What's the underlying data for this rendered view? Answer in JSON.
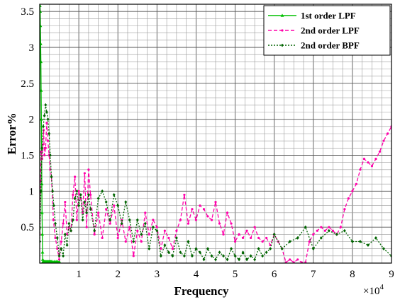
{
  "chart_data": {
    "type": "line",
    "xlabel": "Frequency",
    "ylabel": "Error%",
    "x_multiplier_label": "×10",
    "x_multiplier_exp": "4",
    "xlim": [
      0,
      90000
    ],
    "ylim": [
      0,
      3.6
    ],
    "x_ticks": [
      10000,
      20000,
      30000,
      40000,
      50000,
      60000,
      70000,
      80000,
      90000
    ],
    "x_tick_labels": [
      "1",
      "2",
      "3",
      "4",
      "5",
      "6",
      "7",
      "8",
      "9"
    ],
    "y_ticks": [
      0.5,
      1,
      1.5,
      2,
      2.5,
      3,
      3.5
    ],
    "y_tick_labels": [
      "0.5",
      "1",
      "1.5",
      "2",
      "2.5",
      "3",
      "3.5"
    ],
    "grid": true,
    "legend_position": "top-right",
    "series": [
      {
        "name": "1st order LPF",
        "color": "#00c000",
        "style": "solid",
        "x": [
          0,
          60,
          120,
          180,
          240,
          300,
          360,
          420,
          480,
          540,
          600,
          660,
          720,
          780,
          840,
          900,
          1000,
          1200,
          1400,
          1600,
          1800,
          2000,
          2200,
          2400,
          2600,
          2800,
          3000,
          3400,
          3800,
          4200,
          4600,
          5000
        ],
        "y": [
          0.5,
          3.58,
          3.5,
          3.3,
          3.05,
          2.8,
          2.4,
          2.0,
          1.55,
          1.1,
          0.7,
          0.4,
          0.15,
          0.05,
          0.02,
          0.02,
          0.02,
          0.02,
          0.02,
          0.02,
          0.02,
          0.02,
          0.02,
          0.02,
          0.02,
          0.02,
          0.02,
          0.02,
          0.02,
          0.02,
          0.02,
          0.02
        ]
      },
      {
        "name": "2nd order LPF",
        "color": "#ff00aa",
        "style": "dashed",
        "x": [
          0,
          200,
          400,
          600,
          800,
          1000,
          1200,
          1500,
          1800,
          2100,
          2400,
          2700,
          3000,
          3500,
          4000,
          4500,
          5000,
          5500,
          6000,
          6500,
          7000,
          7500,
          8000,
          8500,
          9000,
          9500,
          10000,
          10500,
          11000,
          11500,
          12000,
          12500,
          13000,
          14000,
          15000,
          16000,
          17000,
          18000,
          19000,
          20000,
          21000,
          22000,
          23000,
          24000,
          25000,
          26000,
          27000,
          28000,
          29000,
          30000,
          31000,
          32000,
          33000,
          34000,
          35000,
          36000,
          37000,
          38000,
          39000,
          40000,
          41000,
          42000,
          43000,
          44000,
          45000,
          46000,
          47000,
          48000,
          49000,
          50000,
          51000,
          52000,
          53000,
          54000,
          55000,
          56000,
          57000,
          58000,
          59000,
          60000,
          61000,
          62000,
          63000,
          64000,
          65000,
          66000,
          67000,
          68000,
          69000,
          70000,
          71000,
          72000,
          73000,
          74000,
          75000,
          76000,
          77000,
          78000,
          79000,
          80000,
          81000,
          82000,
          83000,
          84000,
          85000,
          86000,
          87000,
          88000,
          89000,
          90000
        ],
        "y": [
          0.4,
          1.15,
          1.55,
          1.45,
          1.65,
          1.85,
          1.5,
          1.6,
          1.95,
          1.7,
          1.5,
          1.3,
          1.2,
          0.6,
          0.35,
          0.2,
          0.05,
          0.3,
          0.55,
          0.85,
          0.4,
          0.5,
          0.45,
          0.95,
          1.2,
          0.6,
          1.0,
          0.9,
          0.7,
          1.25,
          0.5,
          1.3,
          0.95,
          0.4,
          0.7,
          0.35,
          0.75,
          0.55,
          0.8,
          0.35,
          0.6,
          0.3,
          0.5,
          0.1,
          0.45,
          0.3,
          0.7,
          0.4,
          0.6,
          0.5,
          0.2,
          0.45,
          0.35,
          0.2,
          0.45,
          0.6,
          0.95,
          0.55,
          0.75,
          0.6,
          0.8,
          0.75,
          0.65,
          0.6,
          0.85,
          0.55,
          0.4,
          0.7,
          0.55,
          0.3,
          0.4,
          0.35,
          0.45,
          0.35,
          0.5,
          0.35,
          0.3,
          0.35,
          0.25,
          0.4,
          0.3,
          0.2,
          0.01,
          0.05,
          0.01,
          0.05,
          0.01,
          0.01,
          0.3,
          0.4,
          0.45,
          0.5,
          0.45,
          0.5,
          0.45,
          0.4,
          0.5,
          0.75,
          0.9,
          1.0,
          1.1,
          1.3,
          1.45,
          1.4,
          1.35,
          1.45,
          1.55,
          1.7,
          1.8,
          1.9
        ]
      },
      {
        "name": "2nd order BPF",
        "color": "#006400",
        "style": "dotted",
        "x": [
          0,
          300,
          600,
          900,
          1200,
          1500,
          1800,
          2100,
          2400,
          2700,
          3000,
          3300,
          3600,
          4000,
          4500,
          5000,
          5500,
          6000,
          6500,
          7000,
          7500,
          8000,
          8500,
          9000,
          9500,
          10000,
          10500,
          11000,
          11500,
          12000,
          12500,
          13000,
          14000,
          15000,
          16000,
          17000,
          18000,
          19000,
          20000,
          21000,
          22000,
          23000,
          24000,
          25000,
          26000,
          27000,
          28000,
          29000,
          30000,
          31000,
          32000,
          33000,
          34000,
          35000,
          36000,
          37000,
          38000,
          39000,
          40000,
          41000,
          42000,
          43000,
          44000,
          45000,
          46000,
          47000,
          48000,
          49000,
          50000,
          51000,
          52000,
          53000,
          54000,
          55000,
          56000,
          57000,
          58000,
          59000,
          60000,
          62000,
          64000,
          66000,
          68000,
          70000,
          72000,
          74000,
          76000,
          78000,
          80000,
          82000,
          84000,
          86000,
          88000,
          90000
        ],
        "y": [
          0.3,
          1.0,
          1.6,
          1.9,
          2.05,
          2.2,
          2.1,
          2.0,
          1.8,
          1.5,
          1.2,
          1.0,
          0.8,
          0.55,
          0.35,
          0.1,
          0.2,
          0.1,
          0.4,
          0.25,
          0.55,
          0.45,
          0.6,
          0.9,
          1.0,
          0.8,
          0.95,
          0.6,
          0.85,
          0.7,
          0.95,
          0.75,
          0.45,
          0.9,
          1.0,
          0.85,
          0.6,
          0.95,
          0.8,
          0.55,
          0.85,
          0.6,
          0.3,
          0.6,
          0.4,
          0.55,
          0.2,
          0.5,
          0.45,
          0.1,
          0.25,
          0.15,
          0.1,
          0.35,
          0.15,
          0.1,
          0.3,
          0.1,
          0.2,
          0.15,
          0.05,
          0.2,
          0.1,
          0.05,
          0.15,
          0.1,
          0.05,
          0.2,
          0.1,
          0.05,
          0.15,
          0.05,
          0.1,
          0.05,
          0.2,
          0.1,
          0.15,
          0.2,
          0.4,
          0.2,
          0.3,
          0.35,
          0.5,
          0.2,
          0.35,
          0.45,
          0.4,
          0.45,
          0.3,
          0.3,
          0.25,
          0.35,
          0.2,
          0.1
        ]
      }
    ]
  }
}
